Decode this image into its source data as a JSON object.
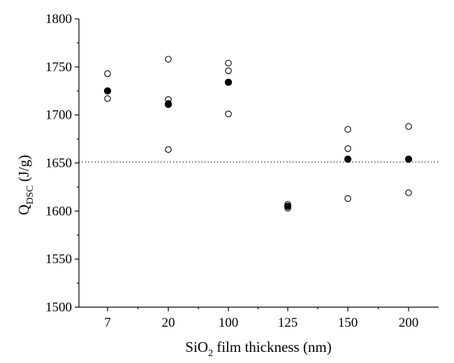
{
  "chart_data": {
    "type": "scatter",
    "title": "",
    "xlabel": {
      "main": "SiO",
      "sub": "2",
      "rest": " film thickness (nm)"
    },
    "ylabel": {
      "main": "Q",
      "sub": "DSC",
      "rest": " (J/g)"
    },
    "categories": [
      "7",
      "20",
      "100",
      "125",
      "150",
      "200"
    ],
    "ylim": [
      1500,
      1800
    ],
    "yticks": [
      1500,
      1550,
      1600,
      1650,
      1700,
      1750,
      1800
    ],
    "ytick_labels": [
      "1500",
      "1550",
      "1600",
      "1650",
      "1700",
      "1750",
      "1800"
    ],
    "reference_line": {
      "y": 1651,
      "style": "dotted"
    },
    "series": [
      {
        "marker": "open-circle",
        "points": [
          {
            "x": "7",
            "y": 1743
          },
          {
            "x": "7",
            "y": 1717
          },
          {
            "x": "20",
            "y": 1758
          },
          {
            "x": "20",
            "y": 1716
          },
          {
            "x": "20",
            "y": 1712
          },
          {
            "x": "20",
            "y": 1664
          },
          {
            "x": "100",
            "y": 1754
          },
          {
            "x": "100",
            "y": 1746
          },
          {
            "x": "100",
            "y": 1701
          },
          {
            "x": "125",
            "y": 1607
          },
          {
            "x": "125",
            "y": 1603
          },
          {
            "x": "150",
            "y": 1685
          },
          {
            "x": "150",
            "y": 1665
          },
          {
            "x": "150",
            "y": 1613
          },
          {
            "x": "200",
            "y": 1688
          },
          {
            "x": "200",
            "y": 1619
          }
        ]
      },
      {
        "marker": "filled-circle",
        "points": [
          {
            "x": "7",
            "y": 1725
          },
          {
            "x": "20",
            "y": 1711
          },
          {
            "x": "100",
            "y": 1734
          },
          {
            "x": "125",
            "y": 1605
          },
          {
            "x": "150",
            "y": 1654
          },
          {
            "x": "200",
            "y": 1654
          }
        ]
      }
    ],
    "grid": false,
    "legend": "none",
    "colors": {
      "marker": "#000000",
      "open_fill": "#ffffff"
    }
  }
}
